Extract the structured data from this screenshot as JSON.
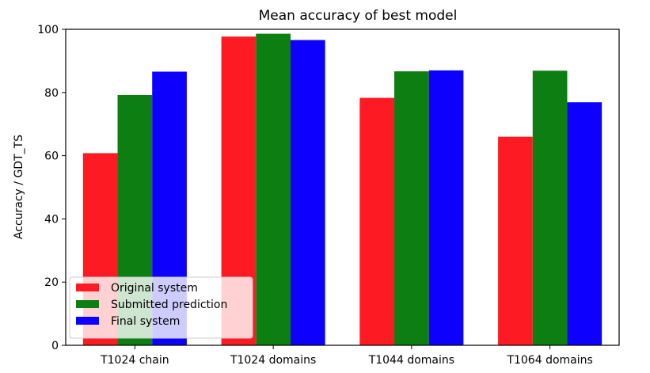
{
  "chart_data": {
    "type": "bar",
    "title": "Mean accuracy of best model",
    "xlabel": "",
    "ylabel": "Accuracy / GDT_TS",
    "ylim": [
      0,
      100
    ],
    "yticks": [
      0,
      20,
      40,
      60,
      80,
      100
    ],
    "categories": [
      "T1024 chain",
      "T1024 domains",
      "T1044 domains",
      "T1064 domains"
    ],
    "series": [
      {
        "name": "Original system",
        "color": "#fe1a23",
        "values": [
          60.8,
          97.7,
          78.3,
          66.0
        ]
      },
      {
        "name": "Submitted prediction",
        "color": "#0c7e12",
        "values": [
          79.2,
          98.6,
          86.7,
          86.9
        ]
      },
      {
        "name": "Final system",
        "color": "#0e00fd",
        "values": [
          86.6,
          96.6,
          87.0,
          76.9
        ]
      }
    ],
    "legend_position": "lower-left",
    "grid": false
  }
}
